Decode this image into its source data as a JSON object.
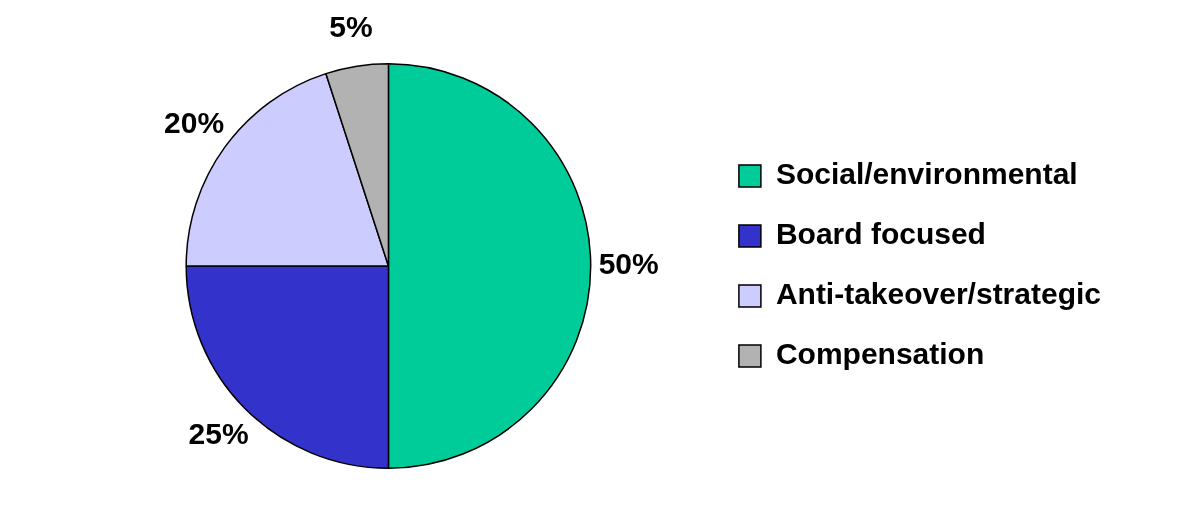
{
  "chart_data": {
    "type": "pie",
    "categories": [
      "Social/environmental",
      "Board focused",
      "Anti-takeover/strategic",
      "Compensation"
    ],
    "values": [
      50,
      25,
      20,
      5
    ],
    "colors": [
      "#00cc99",
      "#3333cc",
      "#ccccff",
      "#b2b2b2"
    ],
    "value_labels": [
      "50%",
      "25%",
      "20%",
      "5%"
    ],
    "legend": "right"
  }
}
